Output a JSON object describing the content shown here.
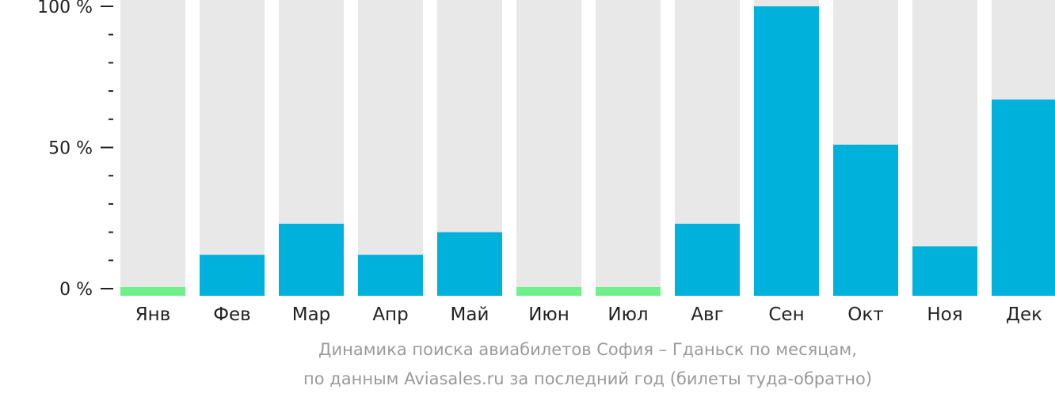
{
  "chart_data": {
    "type": "bar",
    "categories": [
      "Янв",
      "Фев",
      "Мар",
      "Апр",
      "Май",
      "Июн",
      "Июл",
      "Авг",
      "Сен",
      "Окт",
      "Ноя",
      "Дек"
    ],
    "values": [
      0,
      12,
      23,
      12,
      20,
      0,
      0,
      23,
      100,
      51,
      15,
      67
    ],
    "ylim": [
      0,
      100
    ],
    "y_ticks": [
      {
        "value": 0,
        "label": "0 %"
      },
      {
        "value": 50,
        "label": "50 %"
      },
      {
        "value": 100,
        "label": "100 %"
      }
    ],
    "minor_tick_step": 10,
    "title": "",
    "xlabel": "",
    "ylabel": "",
    "legend": "none",
    "grid": false,
    "colors": {
      "bar": "#00b1dc",
      "zero_bar": "#6ff08a",
      "track": "#e8e8e8",
      "axis_text": "#222222",
      "caption_text": "#9a9a9a"
    }
  },
  "caption": {
    "line1": "Динамика поиска авиабилетов София – Гданьск по месяцам,",
    "line2": "по данным Aviasales.ru за последний год (билеты туда-обратно)"
  }
}
